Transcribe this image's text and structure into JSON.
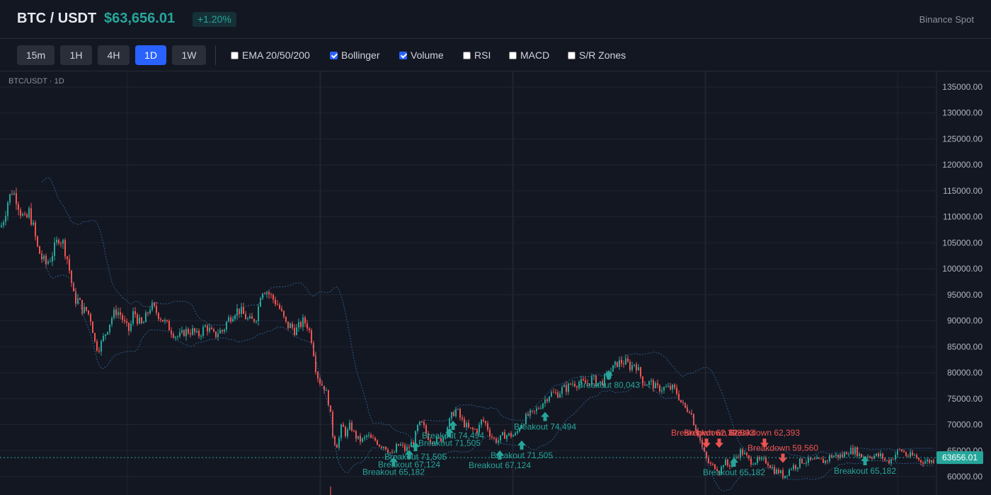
{
  "header": {
    "pair": "BTC / USDT",
    "price": "$63,656.01",
    "change": "+1.20%",
    "source": "Binance Spot"
  },
  "toolbar": {
    "timeframes": [
      {
        "label": "15m",
        "active": false
      },
      {
        "label": "1H",
        "active": false
      },
      {
        "label": "4H",
        "active": false
      },
      {
        "label": "1D",
        "active": true
      },
      {
        "label": "1W",
        "active": false
      }
    ],
    "indicators": [
      {
        "label": "EMA 20/50/200",
        "checked": false
      },
      {
        "label": "Bollinger",
        "checked": true
      },
      {
        "label": "Volume",
        "checked": true
      },
      {
        "label": "RSI",
        "checked": false
      },
      {
        "label": "MACD",
        "checked": false
      },
      {
        "label": "S/R Zones",
        "checked": false
      }
    ]
  },
  "chart_label": "BTC/USDT · 1D",
  "colors": {
    "up": "#26a69a",
    "down": "#ef5350",
    "accent": "#2962ff",
    "bollinger": "#2b5d8a",
    "background": "#131722"
  },
  "chart_data": {
    "type": "candlestick",
    "y_ticks": [
      "135000.00",
      "130000.00",
      "125000.00",
      "120000.00",
      "115000.00",
      "110000.00",
      "105000.00",
      "100000.00",
      "95000.00",
      "90000.00",
      "85000.00",
      "80000.00",
      "75000.00",
      "70000.00",
      "65000.00",
      "60000.00"
    ],
    "ylim": [
      59000,
      136500
    ],
    "last_price_label": "63656.01",
    "last_price": 63656.01,
    "path": [
      [
        0,
        108000
      ],
      [
        5,
        110000
      ],
      [
        10,
        113000
      ],
      [
        16,
        115000
      ],
      [
        21,
        114000
      ],
      [
        28,
        111000
      ],
      [
        35,
        109000
      ],
      [
        40,
        111000
      ],
      [
        46,
        108000
      ],
      [
        52,
        104000
      ],
      [
        58,
        102000
      ],
      [
        64,
        101000
      ],
      [
        70,
        102000
      ],
      [
        76,
        104000
      ],
      [
        82,
        106000
      ],
      [
        88,
        105000
      ],
      [
        94,
        102000
      ],
      [
        98,
        99000
      ],
      [
        104,
        94000
      ],
      [
        110,
        94000
      ],
      [
        116,
        92000
      ],
      [
        122,
        92000
      ],
      [
        128,
        90000
      ],
      [
        134,
        85000
      ],
      [
        140,
        85000
      ],
      [
        146,
        87000
      ],
      [
        152,
        89000
      ],
      [
        158,
        91000
      ],
      [
        164,
        92000
      ],
      [
        170,
        91000
      ],
      [
        176,
        89000
      ],
      [
        182,
        88000
      ],
      [
        188,
        92000
      ],
      [
        194,
        90000
      ],
      [
        200,
        89000
      ],
      [
        206,
        91000
      ],
      [
        212,
        93000
      ],
      [
        218,
        92000
      ],
      [
        224,
        91000
      ],
      [
        230,
        90000
      ],
      [
        236,
        89000
      ],
      [
        242,
        88000
      ],
      [
        248,
        87000
      ],
      [
        254,
        87000
      ],
      [
        260,
        88000
      ],
      [
        266,
        88000
      ],
      [
        272,
        88000
      ],
      [
        278,
        87000
      ],
      [
        284,
        88000
      ],
      [
        290,
        89000
      ],
      [
        296,
        88000
      ],
      [
        302,
        87000
      ],
      [
        308,
        88000
      ],
      [
        314,
        88000
      ],
      [
        320,
        90000
      ],
      [
        326,
        91000
      ],
      [
        332,
        92000
      ],
      [
        338,
        92000
      ],
      [
        344,
        91000
      ],
      [
        350,
        90000
      ],
      [
        356,
        90000
      ],
      [
        362,
        91000
      ],
      [
        368,
        96000
      ],
      [
        374,
        96000
      ],
      [
        380,
        95000
      ],
      [
        386,
        94000
      ],
      [
        392,
        93000
      ],
      [
        398,
        91000
      ],
      [
        404,
        89000
      ],
      [
        410,
        89000
      ],
      [
        416,
        88000
      ],
      [
        422,
        89000
      ],
      [
        428,
        90000
      ],
      [
        434,
        89000
      ],
      [
        440,
        86000
      ],
      [
        446,
        80000
      ],
      [
        452,
        78000
      ],
      [
        458,
        77000
      ],
      [
        464,
        74000
      ],
      [
        470,
        67000
      ],
      [
        476,
        66000
      ],
      [
        482,
        70000
      ],
      [
        488,
        68000
      ],
      [
        494,
        70000
      ],
      [
        500,
        68000
      ],
      [
        506,
        67000
      ],
      [
        512,
        67000
      ],
      [
        518,
        68000
      ],
      [
        524,
        67000
      ],
      [
        530,
        67000
      ],
      [
        536,
        66000
      ],
      [
        542,
        66000
      ],
      [
        548,
        65000
      ],
      [
        554,
        64000
      ],
      [
        560,
        66000
      ],
      [
        566,
        66000
      ],
      [
        572,
        65000
      ],
      [
        578,
        66000
      ],
      [
        584,
        67000
      ],
      [
        590,
        70000
      ],
      [
        596,
        70000
      ],
      [
        602,
        68000
      ],
      [
        608,
        67000
      ],
      [
        614,
        67000
      ],
      [
        620,
        67000
      ],
      [
        626,
        68000
      ],
      [
        632,
        70000
      ],
      [
        638,
        72000
      ],
      [
        644,
        73000
      ],
      [
        650,
        71000
      ],
      [
        656,
        70000
      ],
      [
        662,
        69000
      ],
      [
        668,
        69000
      ],
      [
        674,
        69000
      ],
      [
        680,
        71000
      ],
      [
        686,
        70000
      ],
      [
        692,
        68000
      ],
      [
        698,
        67000
      ],
      [
        704,
        67000
      ],
      [
        710,
        68000
      ],
      [
        716,
        68000
      ],
      [
        722,
        68000
      ],
      [
        728,
        68000
      ],
      [
        734,
        70000
      ],
      [
        740,
        71000
      ],
      [
        746,
        72000
      ],
      [
        752,
        72000
      ],
      [
        758,
        73000
      ],
      [
        764,
        74000
      ],
      [
        770,
        75000
      ],
      [
        776,
        76000
      ],
      [
        782,
        76000
      ],
      [
        788,
        76000
      ],
      [
        794,
        77000
      ],
      [
        800,
        77000
      ],
      [
        806,
        78000
      ],
      [
        812,
        78000
      ],
      [
        818,
        78000
      ],
      [
        824,
        78000
      ],
      [
        830,
        78000
      ],
      [
        836,
        79000
      ],
      [
        842,
        78000
      ],
      [
        848,
        78000
      ],
      [
        854,
        79000
      ],
      [
        860,
        80000
      ],
      [
        866,
        81000
      ],
      [
        872,
        82000
      ],
      [
        878,
        82000
      ],
      [
        884,
        82000
      ],
      [
        890,
        81000
      ],
      [
        896,
        82000
      ],
      [
        902,
        80000
      ],
      [
        908,
        78000
      ],
      [
        914,
        78000
      ],
      [
        920,
        78000
      ],
      [
        926,
        77000
      ],
      [
        932,
        77000
      ],
      [
        938,
        77000
      ],
      [
        944,
        77000
      ],
      [
        950,
        77000
      ],
      [
        956,
        76000
      ],
      [
        962,
        74000
      ],
      [
        968,
        73000
      ],
      [
        974,
        73000
      ],
      [
        980,
        70000
      ],
      [
        986,
        68000
      ],
      [
        992,
        65000
      ],
      [
        998,
        63000
      ],
      [
        1004,
        62000
      ],
      [
        1010,
        62000
      ],
      [
        1016,
        61000
      ],
      [
        1022,
        63000
      ],
      [
        1028,
        62000
      ],
      [
        1034,
        63000
      ],
      [
        1040,
        64000
      ],
      [
        1046,
        65000
      ],
      [
        1052,
        64000
      ],
      [
        1058,
        63000
      ],
      [
        1064,
        63000
      ],
      [
        1070,
        63000
      ],
      [
        1076,
        63000
      ],
      [
        1082,
        63000
      ],
      [
        1088,
        62000
      ],
      [
        1094,
        61000
      ],
      [
        1100,
        61000
      ],
      [
        1106,
        60000
      ],
      [
        1112,
        61000
      ],
      [
        1118,
        62000
      ],
      [
        1124,
        62000
      ],
      [
        1130,
        63000
      ],
      [
        1136,
        63000
      ],
      [
        1142,
        63000
      ],
      [
        1148,
        63000
      ],
      [
        1154,
        63000
      ],
      [
        1160,
        63000
      ],
      [
        1166,
        63000
      ],
      [
        1172,
        64000
      ],
      [
        1178,
        64000
      ],
      [
        1184,
        64000
      ],
      [
        1190,
        64000
      ],
      [
        1196,
        65000
      ],
      [
        1202,
        65000
      ],
      [
        1208,
        65000
      ],
      [
        1214,
        64000
      ],
      [
        1220,
        64000
      ],
      [
        1226,
        64000
      ],
      [
        1232,
        64000
      ],
      [
        1238,
        64000
      ],
      [
        1244,
        64000
      ],
      [
        1250,
        63000
      ],
      [
        1256,
        63000
      ],
      [
        1262,
        64000
      ],
      [
        1268,
        65000
      ],
      [
        1274,
        65000
      ],
      [
        1280,
        64000
      ],
      [
        1286,
        64000
      ],
      [
        1292,
        64000
      ],
      [
        1298,
        63000
      ],
      [
        1304,
        63000
      ],
      [
        1310,
        63000
      ],
      [
        1316,
        63000
      ],
      [
        1322,
        63656
      ]
    ],
    "annotations": [
      {
        "text": "Breakout 80,043",
        "x": 860,
        "price": 79500,
        "dir": "up"
      },
      {
        "text": "Breakout 74,494",
        "x": 770,
        "price": 71500,
        "dir": "up"
      },
      {
        "text": "Breakout 74,494",
        "x": 640,
        "price": 69800,
        "dir": "up"
      },
      {
        "text": "Breakout 71,505",
        "x": 635,
        "price": 68400,
        "dir": "up"
      },
      {
        "text": "Breakout 71,505",
        "x": 587,
        "price": 65700,
        "dir": "up"
      },
      {
        "text": "Breakout 71,505",
        "x": 737,
        "price": 66000,
        "dir": "up"
      },
      {
        "text": "Breakout 67,124",
        "x": 578,
        "price": 64200,
        "dir": "up"
      },
      {
        "text": "Breakout 67,124",
        "x": 706,
        "price": 64100,
        "dir": "up"
      },
      {
        "text": "Breakout 65,182",
        "x": 556,
        "price": 62800,
        "dir": "up"
      },
      {
        "text": "Breakout 65,182",
        "x": 1037,
        "price": 62700,
        "dir": "up"
      },
      {
        "text": "Breakout 65,182",
        "x": 1222,
        "price": 63000,
        "dir": "up"
      },
      {
        "text": "Breakdown 62,393",
        "x": 998,
        "price": 66500,
        "dir": "down"
      },
      {
        "text": "Breakdown 62,393",
        "x": 1016,
        "price": 66500,
        "dir": "down"
      },
      {
        "text": "Breakdown 62,393",
        "x": 1080,
        "price": 66500,
        "dir": "down"
      },
      {
        "text": "Breakdown 59,560",
        "x": 1106,
        "price": 63600,
        "dir": "down"
      }
    ]
  }
}
